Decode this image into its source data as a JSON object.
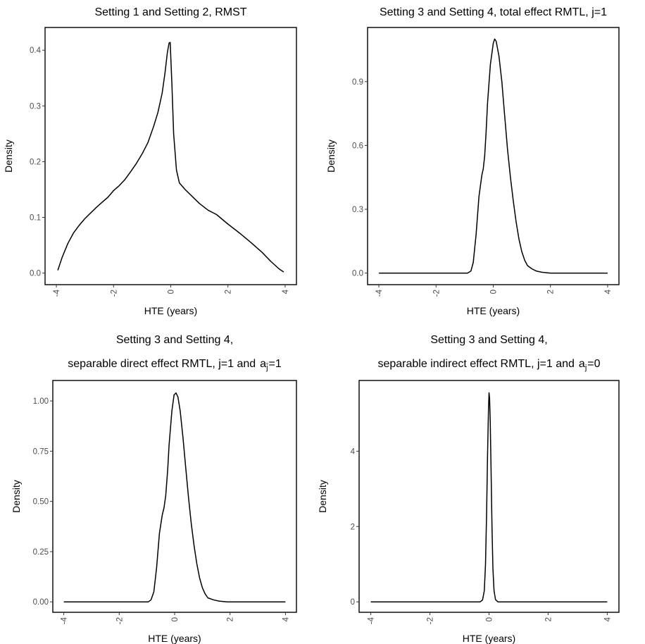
{
  "figure": {
    "ylabel": "Density",
    "xlabel": "HTE (years)"
  },
  "chart_data": [
    {
      "type": "line",
      "title": "Setting 1 and Setting 2, RMST",
      "xlabel": "HTE (years)",
      "ylabel": "Density",
      "xlim": [
        -4,
        4
      ],
      "ylim": [
        0,
        0.42
      ],
      "xticks": [
        -4,
        -2,
        0,
        2,
        4
      ],
      "yticks": [
        0.0,
        0.1,
        0.2,
        0.3,
        0.4
      ],
      "ytick_labels": [
        "0.0",
        "0.1",
        "0.2",
        "0.3",
        "0.4"
      ],
      "grid": false,
      "series": [
        {
          "x": [
            -3.95,
            -3.8,
            -3.6,
            -3.4,
            -3.2,
            -3.0,
            -2.8,
            -2.6,
            -2.4,
            -2.2,
            -2.0,
            -1.8,
            -1.6,
            -1.4,
            -1.2,
            -1.0,
            -0.8,
            -0.6,
            -0.45,
            -0.3,
            -0.2,
            -0.12,
            -0.06,
            -0.02,
            0.04,
            0.1,
            0.2,
            0.3,
            0.5,
            0.8,
            1.0,
            1.3,
            1.6,
            2.0,
            2.4,
            2.8,
            3.2,
            3.5,
            3.8,
            3.95
          ],
          "y": [
            0.005,
            0.028,
            0.053,
            0.072,
            0.086,
            0.098,
            0.108,
            0.118,
            0.127,
            0.136,
            0.148,
            0.157,
            0.168,
            0.182,
            0.197,
            0.214,
            0.234,
            0.263,
            0.288,
            0.323,
            0.36,
            0.395,
            0.413,
            0.414,
            0.34,
            0.25,
            0.185,
            0.162,
            0.15,
            0.135,
            0.125,
            0.113,
            0.105,
            0.088,
            0.072,
            0.055,
            0.037,
            0.021,
            0.007,
            0.002
          ]
        }
      ]
    },
    {
      "type": "line",
      "title": "Setting 3 and Setting 4, total effect RMTL, j=1",
      "xlabel": "HTE (years)",
      "ylabel": "Density",
      "xlim": [
        -4,
        4
      ],
      "ylim": [
        0,
        1.1
      ],
      "xticks": [
        -4,
        -2,
        0,
        2,
        4
      ],
      "yticks": [
        0.0,
        0.3,
        0.6,
        0.9
      ],
      "ytick_labels": [
        "0.0",
        "0.3",
        "0.6",
        "0.9"
      ],
      "grid": false,
      "series": [
        {
          "x": [
            -4.0,
            -0.9,
            -0.78,
            -0.7,
            -0.6,
            -0.5,
            -0.4,
            -0.35,
            -0.3,
            -0.25,
            -0.2,
            -0.1,
            0.0,
            0.05,
            0.1,
            0.2,
            0.3,
            0.4,
            0.5,
            0.6,
            0.7,
            0.8,
            0.9,
            1.0,
            1.1,
            1.2,
            1.35,
            1.5,
            1.7,
            2.0,
            4.0
          ],
          "y": [
            0.0,
            0.0,
            0.01,
            0.05,
            0.18,
            0.36,
            0.46,
            0.49,
            0.55,
            0.66,
            0.8,
            0.98,
            1.08,
            1.1,
            1.09,
            1.02,
            0.9,
            0.74,
            0.58,
            0.45,
            0.34,
            0.24,
            0.16,
            0.1,
            0.06,
            0.035,
            0.02,
            0.01,
            0.004,
            0.0,
            0.0
          ]
        }
      ]
    },
    {
      "type": "line",
      "title": "Setting 3 and Setting 4,",
      "subtitle": "separable direct effect RMTL, j=1 and",
      "subtitle_symbol": "a",
      "subtitle_subscript": "j̄",
      "subtitle_suffix": "=1",
      "xlabel": "HTE (years)",
      "ylabel": "Density",
      "xlim": [
        -4,
        4
      ],
      "ylim": [
        0,
        1.05
      ],
      "xticks": [
        -4,
        -2,
        0,
        2,
        4
      ],
      "yticks": [
        0.0,
        0.25,
        0.5,
        0.75,
        1.0
      ],
      "ytick_labels": [
        "0.00",
        "0.25",
        "0.50",
        "0.75",
        "1.00"
      ],
      "grid": false,
      "series": [
        {
          "x": [
            -4.0,
            -0.95,
            -0.85,
            -0.75,
            -0.65,
            -0.55,
            -0.45,
            -0.38,
            -0.32,
            -0.25,
            -0.2,
            -0.1,
            -0.02,
            0.05,
            0.12,
            0.2,
            0.3,
            0.4,
            0.5,
            0.6,
            0.7,
            0.8,
            0.9,
            1.0,
            1.1,
            1.2,
            1.4,
            1.6,
            1.9,
            4.0
          ],
          "y": [
            0.0,
            0.0,
            0.01,
            0.05,
            0.17,
            0.34,
            0.43,
            0.47,
            0.53,
            0.66,
            0.78,
            0.95,
            1.03,
            1.04,
            1.02,
            0.95,
            0.82,
            0.67,
            0.52,
            0.39,
            0.28,
            0.19,
            0.12,
            0.07,
            0.04,
            0.02,
            0.01,
            0.004,
            0.0,
            0.0
          ]
        }
      ]
    },
    {
      "type": "line",
      "title": "Setting 3 and Setting 4,",
      "subtitle": "separable indirect effect RMTL, j=1 and",
      "subtitle_symbol": "a",
      "subtitle_subscript": "j",
      "subtitle_suffix": "=0",
      "xlabel": "HTE (years)",
      "ylabel": "Density",
      "xlim": [
        -4,
        4
      ],
      "ylim": [
        0,
        5.6
      ],
      "xticks": [
        -4,
        -2,
        0,
        2,
        4
      ],
      "yticks": [
        0,
        2,
        4
      ],
      "ytick_labels": [
        "0",
        "2",
        "4"
      ],
      "grid": false,
      "series": [
        {
          "x": [
            -4.0,
            -0.3,
            -0.22,
            -0.16,
            -0.12,
            -0.08,
            -0.05,
            -0.02,
            0.0,
            0.02,
            0.04,
            0.07,
            0.1,
            0.13,
            0.17,
            0.22,
            0.3,
            4.0
          ],
          "y": [
            0.0,
            0.0,
            0.05,
            0.3,
            1.0,
            2.4,
            3.9,
            5.1,
            5.55,
            5.4,
            4.8,
            3.5,
            2.0,
            0.9,
            0.3,
            0.06,
            0.0,
            0.0
          ]
        }
      ]
    }
  ]
}
